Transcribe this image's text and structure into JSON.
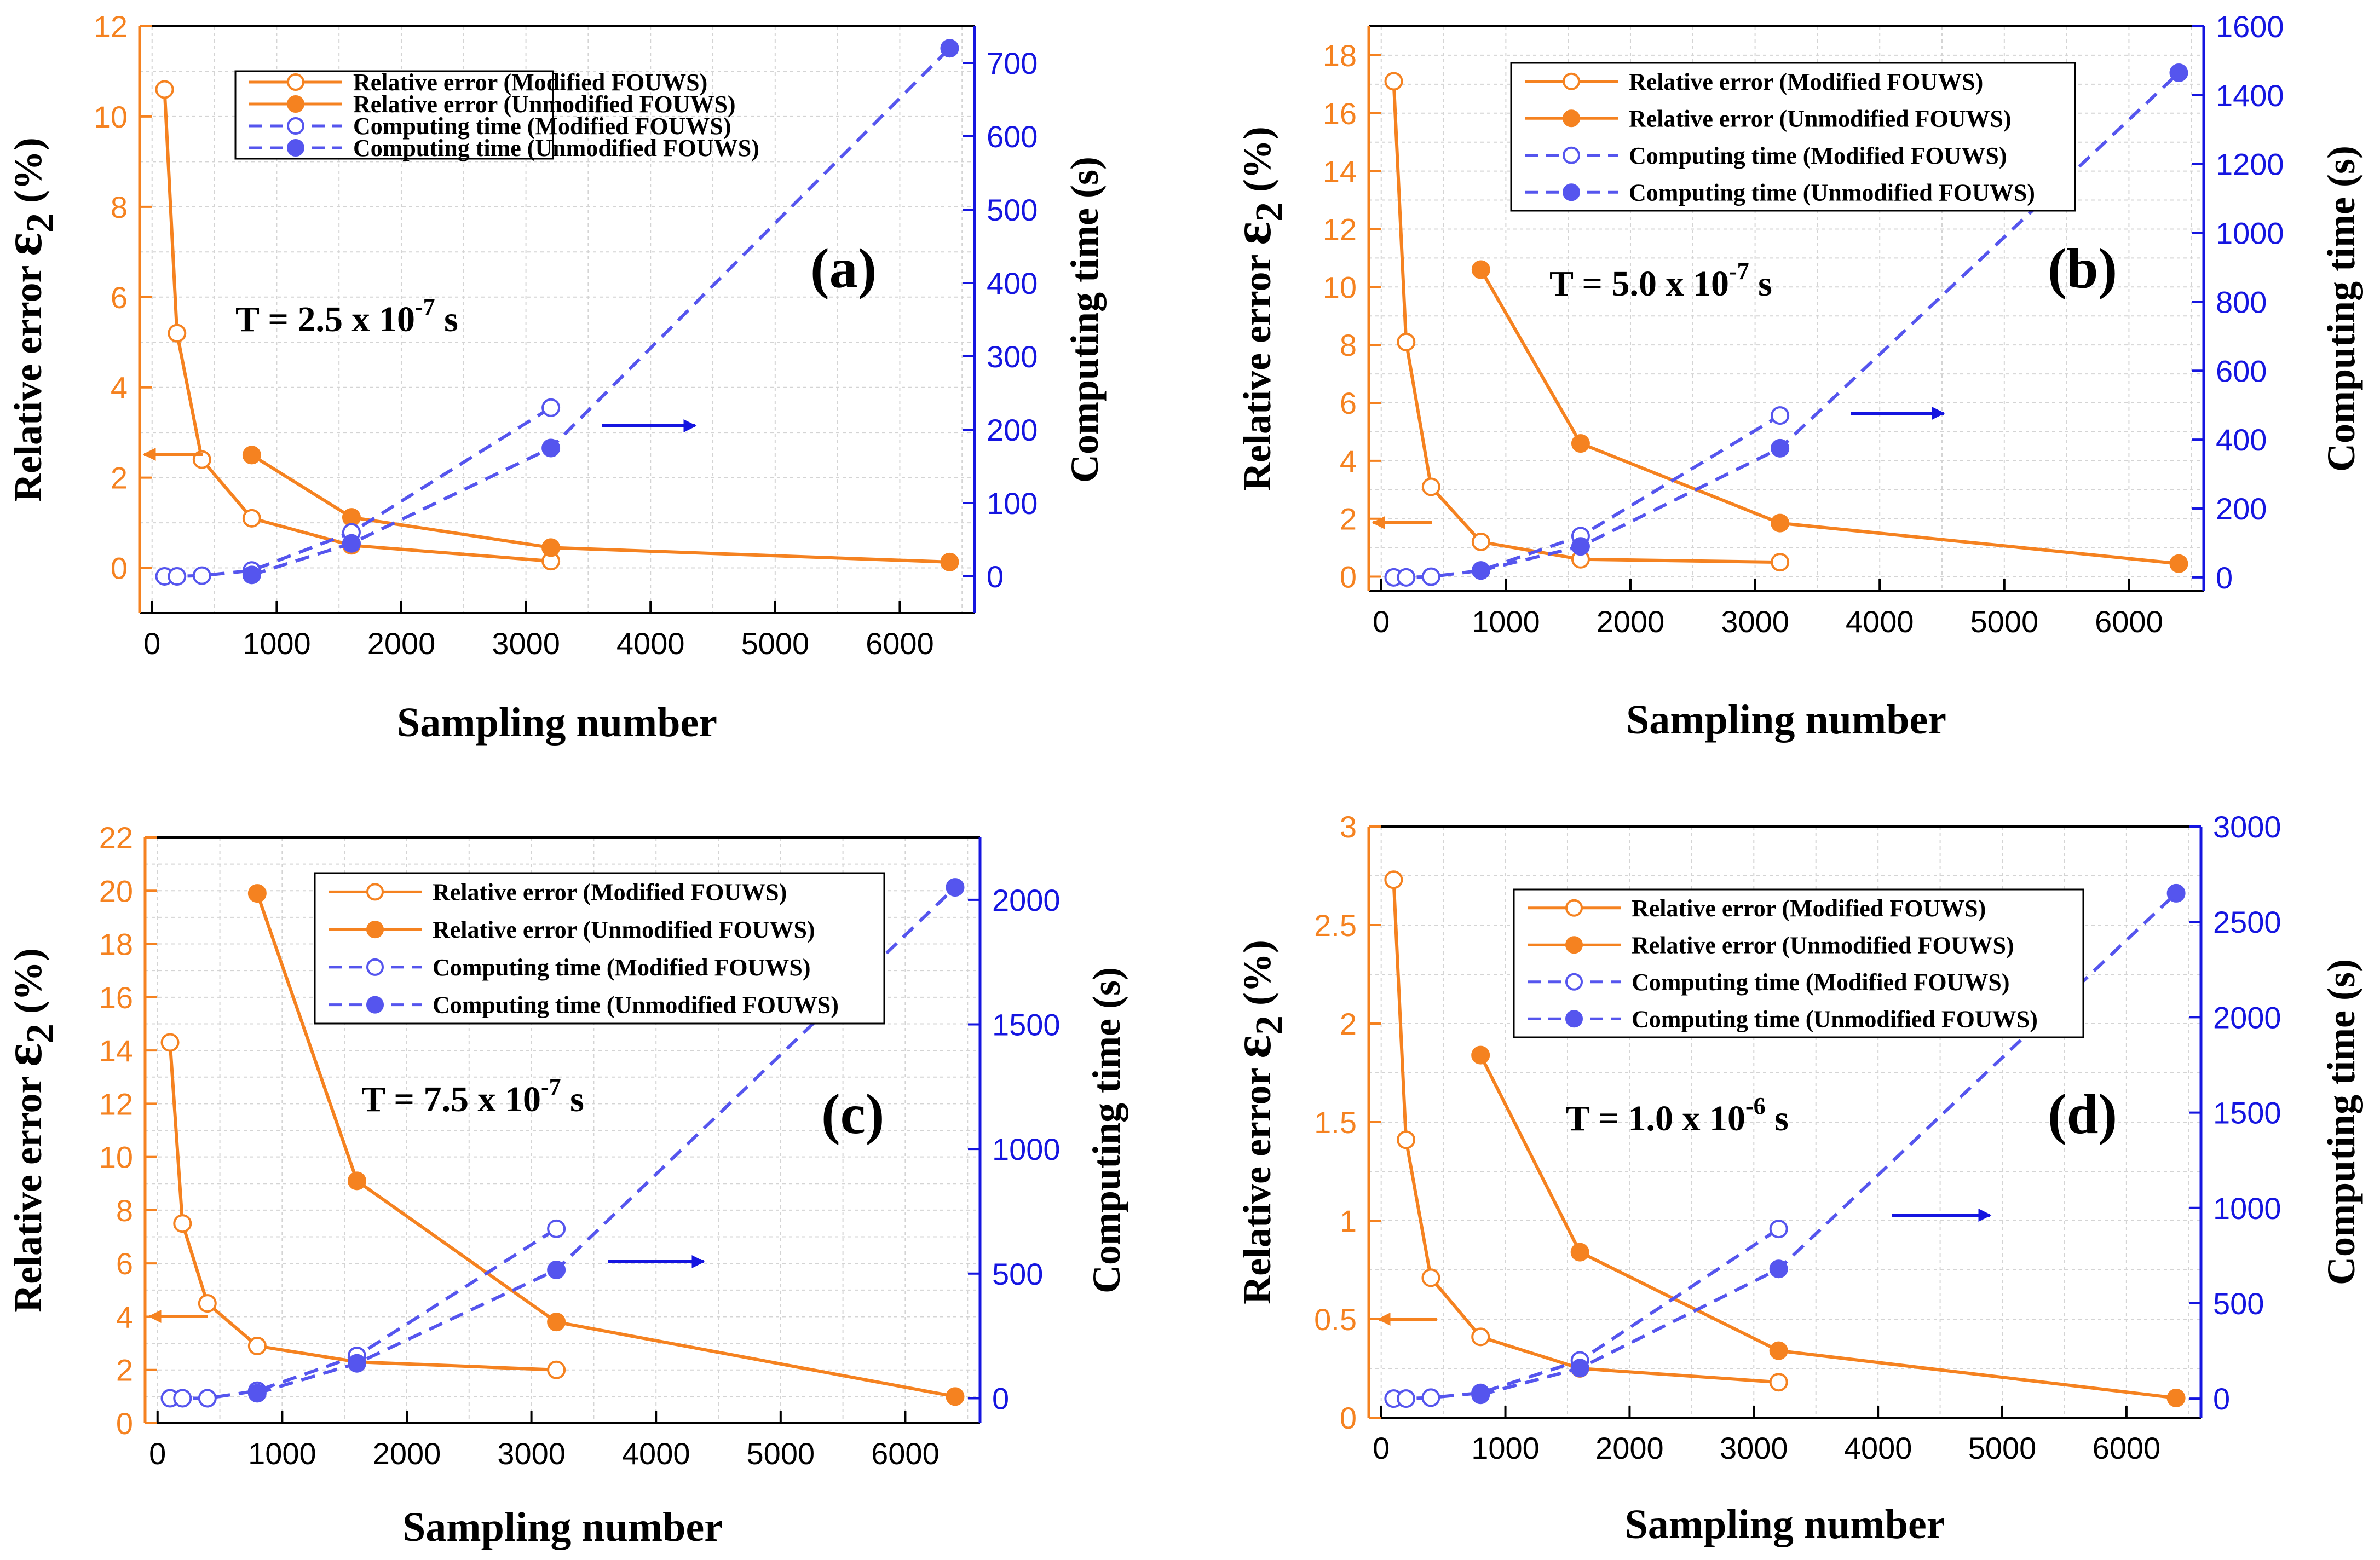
{
  "colors": {
    "orange": "#F58220",
    "blue": "#5555EE",
    "arrow_blue": "#1515E0",
    "grid": "#D4D4D4"
  },
  "legend": [
    "Relative error (Modified FOUWS)",
    "Relative error (Unmodified FOUWS)",
    "Computing time (Modified FOUWS)",
    "Computing time (Unmodified FOUWS)"
  ],
  "chart_data": [
    {
      "type": "line",
      "panel_label": "(a)",
      "annotation": {
        "prefix": "T = 2.5 x 10",
        "exp": "-7",
        "suffix": " s"
      },
      "xlabel": "Sampling number",
      "ylabel_left": {
        "prefix": "Relative error ",
        "symbol": "ε",
        "sub": "2",
        "suffix": " (%)"
      },
      "ylabel_right": "Computing time (s)",
      "xlim": [
        -100,
        6600
      ],
      "xticks": [
        0,
        1000,
        2000,
        3000,
        4000,
        5000,
        6000
      ],
      "ylim_left": [
        -1,
        12
      ],
      "yticks_left": [
        0,
        2,
        4,
        6,
        8,
        10,
        12
      ],
      "ylim_right": [
        -50,
        750
      ],
      "yticks_right": [
        0,
        100,
        200,
        300,
        400,
        500,
        600,
        700
      ],
      "legend_position": "top-left",
      "series": [
        {
          "name": "Relative error (Modified FOUWS)",
          "axis": "left",
          "color": "#F58220",
          "style": "solid",
          "marker": "open",
          "x": [
            100,
            200,
            400,
            800,
            1600,
            3200
          ],
          "y": [
            10.6,
            5.2,
            2.4,
            1.1,
            0.5,
            0.15
          ]
        },
        {
          "name": "Relative error (Unmodified FOUWS)",
          "axis": "left",
          "color": "#F58220",
          "style": "solid",
          "marker": "filled",
          "x": [
            800,
            1600,
            3200,
            6400
          ],
          "y": [
            2.5,
            1.12,
            0.45,
            0.13
          ]
        },
        {
          "name": "Computing time (Modified FOUWS)",
          "axis": "right",
          "color": "#5555EE",
          "style": "dashed",
          "marker": "open",
          "x": [
            100,
            200,
            400,
            800,
            1600,
            3200
          ],
          "y": [
            0,
            0,
            1,
            8,
            60,
            230
          ]
        },
        {
          "name": "Computing time (Unmodified FOUWS)",
          "axis": "right",
          "color": "#5555EE",
          "style": "dashed",
          "marker": "filled",
          "x": [
            800,
            1600,
            3200,
            6400
          ],
          "y": [
            2,
            45,
            175,
            720
          ]
        }
      ]
    },
    {
      "type": "line",
      "panel_label": "(b)",
      "annotation": {
        "prefix": "T = 5.0 x 10",
        "exp": "-7",
        "suffix": " s"
      },
      "xlabel": "Sampling number",
      "ylabel_left": {
        "prefix": "Relative error ",
        "symbol": "ε",
        "sub": "2",
        "suffix": " (%)"
      },
      "ylabel_right": "Computing time (s)",
      "xlim": [
        -100,
        6600
      ],
      "xticks": [
        0,
        1000,
        2000,
        3000,
        4000,
        5000,
        6000
      ],
      "ylim_left": [
        -0.5,
        19
      ],
      "yticks_left": [
        0,
        2,
        4,
        6,
        8,
        10,
        12,
        14,
        16,
        18
      ],
      "ylim_right": [
        -40,
        1600
      ],
      "yticks_right": [
        0,
        200,
        400,
        600,
        800,
        1000,
        1200,
        1400,
        1600
      ],
      "legend_position": "top-left",
      "series": [
        {
          "name": "Relative error (Modified FOUWS)",
          "axis": "left",
          "color": "#F58220",
          "style": "solid",
          "marker": "open",
          "x": [
            100,
            200,
            400,
            800,
            1600,
            3200
          ],
          "y": [
            17.1,
            8.1,
            3.1,
            1.2,
            0.6,
            0.5
          ]
        },
        {
          "name": "Relative error (Unmodified FOUWS)",
          "axis": "left",
          "color": "#F58220",
          "style": "solid",
          "marker": "filled",
          "x": [
            800,
            1600,
            3200,
            6400
          ],
          "y": [
            10.6,
            4.6,
            1.85,
            0.45
          ]
        },
        {
          "name": "Computing time (Modified FOUWS)",
          "axis": "right",
          "color": "#5555EE",
          "style": "dashed",
          "marker": "open",
          "x": [
            100,
            200,
            400,
            800,
            1600,
            3200
          ],
          "y": [
            0,
            0,
            2,
            20,
            120,
            470
          ]
        },
        {
          "name": "Computing time (Unmodified FOUWS)",
          "axis": "right",
          "color": "#5555EE",
          "style": "dashed",
          "marker": "filled",
          "x": [
            800,
            1600,
            3200,
            6400
          ],
          "y": [
            20,
            90,
            375,
            1465
          ]
        }
      ]
    },
    {
      "type": "line",
      "panel_label": "(c)",
      "annotation": {
        "prefix": "T = 7.5 x 10",
        "exp": "-7",
        "suffix": " s"
      },
      "xlabel": "Sampling number",
      "ylabel_left": {
        "prefix": "Relative error ",
        "symbol": "ε",
        "sub": "2",
        "suffix": " (%)"
      },
      "ylabel_right": "Computing time (s)",
      "xlim": [
        -100,
        6600
      ],
      "xticks": [
        0,
        1000,
        2000,
        3000,
        4000,
        5000,
        6000
      ],
      "ylim_left": [
        0,
        22
      ],
      "yticks_left": [
        0,
        2,
        4,
        6,
        8,
        10,
        12,
        14,
        16,
        18,
        20,
        22
      ],
      "ylim_right": [
        -100,
        2250
      ],
      "yticks_right": [
        0,
        500,
        1000,
        1500,
        2000
      ],
      "legend_position": "top-right",
      "series": [
        {
          "name": "Relative error (Modified FOUWS)",
          "axis": "left",
          "color": "#F58220",
          "style": "solid",
          "marker": "open",
          "x": [
            100,
            200,
            400,
            800,
            1600,
            3200
          ],
          "y": [
            14.3,
            7.5,
            4.5,
            2.9,
            2.3,
            2.0
          ]
        },
        {
          "name": "Relative error (Unmodified FOUWS)",
          "axis": "left",
          "color": "#F58220",
          "style": "solid",
          "marker": "filled",
          "x": [
            800,
            1600,
            3200,
            6400
          ],
          "y": [
            19.9,
            9.1,
            3.8,
            1.0
          ]
        },
        {
          "name": "Computing time (Modified FOUWS)",
          "axis": "right",
          "color": "#5555EE",
          "style": "dashed",
          "marker": "open",
          "x": [
            100,
            200,
            400,
            800,
            1600,
            3200
          ],
          "y": [
            0,
            0,
            0,
            30,
            170,
            680
          ]
        },
        {
          "name": "Computing time (Unmodified FOUWS)",
          "axis": "right",
          "color": "#5555EE",
          "style": "dashed",
          "marker": "filled",
          "x": [
            800,
            1600,
            3200,
            6400
          ],
          "y": [
            20,
            140,
            515,
            2050
          ]
        }
      ]
    },
    {
      "type": "line",
      "panel_label": "(d)",
      "annotation": {
        "prefix": "T = 1.0 x 10",
        "exp": "-6",
        "suffix": " s"
      },
      "xlabel": "Sampling number",
      "ylabel_left": {
        "prefix": "Relative error ",
        "symbol": "ε",
        "sub": "2",
        "suffix": " (%)"
      },
      "ylabel_right": "Computing time (s)",
      "xlim": [
        -100,
        6600
      ],
      "xticks": [
        0,
        1000,
        2000,
        3000,
        4000,
        5000,
        6000
      ],
      "ylim_left": [
        0,
        3.0
      ],
      "yticks_left": [
        0.0,
        0.5,
        1.0,
        1.5,
        2.0,
        2.5,
        3.0
      ],
      "ylim_right": [
        -100,
        3000
      ],
      "yticks_right": [
        0,
        500,
        1000,
        1500,
        2000,
        2500,
        3000
      ],
      "legend_position": "top-right",
      "series": [
        {
          "name": "Relative error (Modified FOUWS)",
          "axis": "left",
          "color": "#F58220",
          "style": "solid",
          "marker": "open",
          "x": [
            100,
            200,
            400,
            800,
            1600,
            3200
          ],
          "y": [
            2.73,
            1.41,
            0.71,
            0.41,
            0.25,
            0.18
          ]
        },
        {
          "name": "Relative error (Unmodified FOUWS)",
          "axis": "left",
          "color": "#F58220",
          "style": "solid",
          "marker": "filled",
          "x": [
            800,
            1600,
            3200,
            6400
          ],
          "y": [
            1.84,
            0.84,
            0.34,
            0.1
          ]
        },
        {
          "name": "Computing time (Modified FOUWS)",
          "axis": "right",
          "color": "#5555EE",
          "style": "dashed",
          "marker": "open",
          "x": [
            100,
            200,
            400,
            800,
            1600,
            3200
          ],
          "y": [
            0,
            0,
            5,
            30,
            200,
            890
          ]
        },
        {
          "name": "Computing time (Unmodified FOUWS)",
          "axis": "right",
          "color": "#5555EE",
          "style": "dashed",
          "marker": "filled",
          "x": [
            800,
            1600,
            3200,
            6400
          ],
          "y": [
            20,
            160,
            680,
            2650
          ]
        }
      ]
    }
  ]
}
